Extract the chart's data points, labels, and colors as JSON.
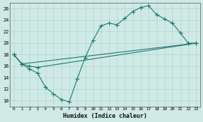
{
  "xlabel": "Humidex (Indice chaleur)",
  "bg_color": "#cfe9e5",
  "grid_color": "#b0d5d0",
  "line_color": "#1a7a6e",
  "xlim": [
    -0.5,
    23.5
  ],
  "ylim": [
    9,
    27
  ],
  "xticks": [
    0,
    1,
    2,
    3,
    4,
    5,
    6,
    7,
    8,
    9,
    10,
    11,
    12,
    13,
    14,
    15,
    16,
    17,
    18,
    19,
    20,
    21,
    22,
    23
  ],
  "yticks": [
    10,
    12,
    14,
    16,
    18,
    20,
    22,
    24,
    26
  ],
  "line1_x": [
    0,
    1,
    2,
    3,
    4,
    5,
    6,
    7,
    8,
    9,
    10,
    11,
    12,
    13,
    14,
    15,
    16,
    17,
    18,
    19,
    20,
    21,
    22,
    23
  ],
  "line1_y": [
    18.0,
    16.4,
    15.5,
    14.8,
    12.3,
    11.2,
    10.2,
    9.8,
    13.8,
    17.5,
    20.5,
    23.0,
    23.5,
    23.2,
    24.3,
    25.5,
    26.2,
    26.5,
    25.0,
    24.2,
    23.5,
    21.8,
    20.0,
    20.0
  ],
  "line2_x": [
    0,
    1,
    2,
    3,
    23
  ],
  "line2_y": [
    18.0,
    16.4,
    16.0,
    15.8,
    20.0
  ],
  "line3_x": [
    0,
    1,
    23
  ],
  "line3_y": [
    18.0,
    16.4,
    20.0
  ]
}
